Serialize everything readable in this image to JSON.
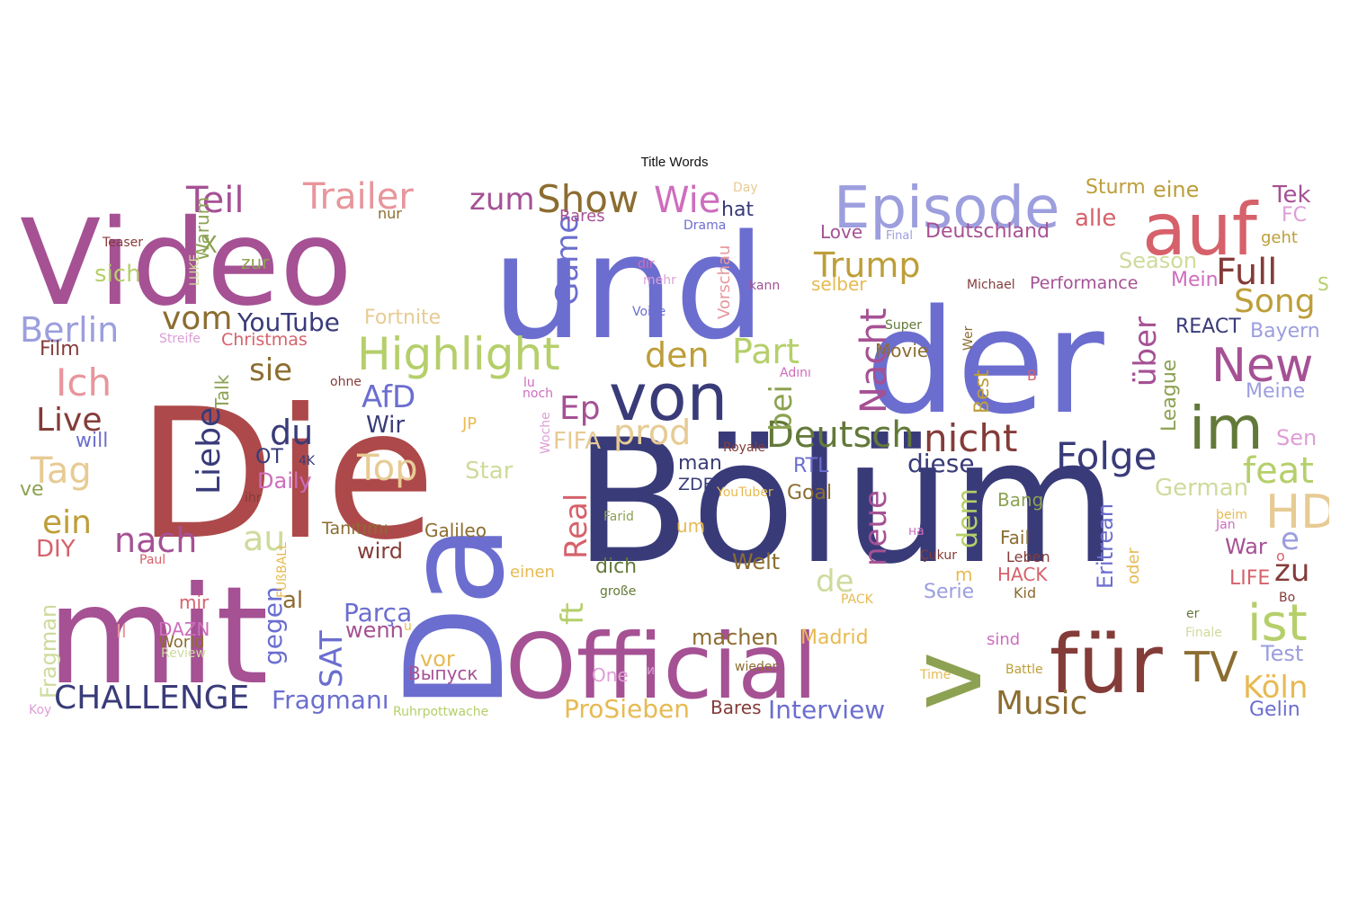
{
  "title": "Title Words",
  "palette": {
    "indigo": "#6b6ecf",
    "navy": "#393b79",
    "periwinkle": "#9c9ede",
    "red": "#ad494a",
    "salmon": "#d6616b",
    "pink": "#e7969c",
    "magenta": "#a55194",
    "orchid": "#ce6dbd",
    "lilac": "#de9ed6",
    "olive": "#637939",
    "moss": "#8ca252",
    "lime": "#b5cf6b",
    "pale": "#cedb9c",
    "brown": "#8c6d31",
    "gold": "#bd9e39",
    "amber": "#e7ba52",
    "sand": "#e7cb94",
    "maroon": "#843c39"
  },
  "words": [
    {
      "text": "Bölüm",
      "color": "navy"
    },
    {
      "text": "Die",
      "color": "red"
    },
    {
      "text": "und",
      "color": "indigo"
    },
    {
      "text": "der",
      "color": "indigo"
    },
    {
      "text": "Video",
      "color": "magenta"
    },
    {
      "text": "mit",
      "color": "magenta"
    },
    {
      "text": "Da",
      "color": "indigo"
    },
    {
      "text": "Official",
      "color": "magenta"
    },
    {
      "text": "auf",
      "color": "salmon"
    },
    {
      "text": "v",
      "color": "moss"
    },
    {
      "text": "für",
      "color": "maroon"
    },
    {
      "text": "Episode",
      "color": "periwinkle"
    },
    {
      "text": "von",
      "color": "navy"
    },
    {
      "text": "im",
      "color": "olive"
    },
    {
      "text": "Trailer",
      "color": "pink"
    },
    {
      "text": "Highlight",
      "color": "lime"
    },
    {
      "text": "New",
      "color": "magenta"
    },
    {
      "text": "HD",
      "color": "sand"
    },
    {
      "text": "ist",
      "color": "lime"
    },
    {
      "text": "Show",
      "color": "brown"
    },
    {
      "text": "Teil",
      "color": "magenta"
    },
    {
      "text": "zum",
      "color": "magenta"
    },
    {
      "text": "Wie",
      "color": "orchid"
    },
    {
      "text": "Trump",
      "color": "gold"
    },
    {
      "text": "Full",
      "color": "maroon"
    },
    {
      "text": "Song",
      "color": "gold"
    },
    {
      "text": "Part",
      "color": "lime"
    },
    {
      "text": "den",
      "color": "gold"
    },
    {
      "text": "Folge",
      "color": "navy"
    },
    {
      "text": "Deutsch",
      "color": "olive"
    },
    {
      "text": "nicht",
      "color": "maroon"
    },
    {
      "text": "Nacht",
      "color": "magenta"
    },
    {
      "text": "Game",
      "color": "indigo"
    },
    {
      "text": "Berlin",
      "color": "periwinkle"
    },
    {
      "text": "vom",
      "color": "brown"
    },
    {
      "text": "YouTube",
      "color": "navy"
    },
    {
      "text": "AfD",
      "color": "indigo"
    },
    {
      "text": "Ich",
      "color": "pink"
    },
    {
      "text": "Live",
      "color": "maroon"
    },
    {
      "text": "sie",
      "color": "brown"
    },
    {
      "text": "Tag",
      "color": "sand"
    },
    {
      "text": "du",
      "color": "navy"
    },
    {
      "text": "Liebe",
      "color": "navy"
    },
    {
      "text": "prod",
      "color": "sand"
    },
    {
      "text": "Ep",
      "color": "magenta"
    },
    {
      "text": "bei",
      "color": "moss"
    },
    {
      "text": "Top",
      "color": "sand"
    },
    {
      "text": "feat",
      "color": "lime"
    },
    {
      "text": "über",
      "color": "magenta"
    },
    {
      "text": "Real",
      "color": "salmon"
    },
    {
      "text": "ft",
      "color": "lime"
    },
    {
      "text": "ein",
      "color": "gold"
    },
    {
      "text": "nach",
      "color": "magenta"
    },
    {
      "text": "au",
      "color": "pale"
    },
    {
      "text": "neue",
      "color": "magenta"
    },
    {
      "text": "dem",
      "color": "lime"
    },
    {
      "text": "diese",
      "color": "navy"
    },
    {
      "text": "Music",
      "color": "brown"
    },
    {
      "text": "Köln",
      "color": "amber"
    },
    {
      "text": "TV",
      "color": "brown"
    },
    {
      "text": "CHALLENGE",
      "color": "navy"
    },
    {
      "text": "SAT",
      "color": "indigo"
    },
    {
      "text": "gegen",
      "color": "indigo"
    },
    {
      "text": "Fragmanı",
      "color": "indigo"
    },
    {
      "text": "Parça",
      "color": "indigo"
    },
    {
      "text": "ProSieben",
      "color": "amber"
    },
    {
      "text": "Interview",
      "color": "indigo"
    },
    {
      "text": "machen",
      "color": "brown"
    },
    {
      "text": "Madrid",
      "color": "amber"
    },
    {
      "text": "German",
      "color": "pale"
    },
    {
      "text": "Eritrean",
      "color": "indigo"
    },
    {
      "text": "Sturm",
      "color": "gold"
    },
    {
      "text": "eine",
      "color": "gold"
    },
    {
      "text": "Tek",
      "color": "magenta"
    },
    {
      "text": "alle",
      "color": "salmon"
    },
    {
      "text": "Deutschland",
      "color": "magenta"
    },
    {
      "text": "Season",
      "color": "pale"
    },
    {
      "text": "Mein",
      "color": "orchid"
    },
    {
      "text": "Performance",
      "color": "magenta"
    },
    {
      "text": "REACT",
      "color": "navy"
    },
    {
      "text": "Bayern",
      "color": "periwinkle"
    },
    {
      "text": "Meine",
      "color": "periwinkle"
    },
    {
      "text": "Sen",
      "color": "lilac"
    },
    {
      "text": "League",
      "color": "moss"
    },
    {
      "text": "Best",
      "color": "gold"
    },
    {
      "text": "Movie",
      "color": "brown"
    },
    {
      "text": "Love",
      "color": "magenta"
    },
    {
      "text": "selber",
      "color": "amber"
    },
    {
      "text": "Fortnite",
      "color": "sand"
    },
    {
      "text": "Christmas",
      "color": "salmon"
    },
    {
      "text": "Warum",
      "color": "moss"
    },
    {
      "text": "sich",
      "color": "lime"
    },
    {
      "text": "zur",
      "color": "moss"
    },
    {
      "text": "Film",
      "color": "maroon"
    },
    {
      "text": "Wir",
      "color": "navy"
    },
    {
      "text": "will",
      "color": "indigo"
    },
    {
      "text": "Talk",
      "color": "moss"
    },
    {
      "text": "Daily",
      "color": "orchid"
    },
    {
      "text": "FIFA",
      "color": "sand"
    },
    {
      "text": "Star",
      "color": "pale"
    },
    {
      "text": "RTL",
      "color": "indigo"
    },
    {
      "text": "man",
      "color": "navy"
    },
    {
      "text": "ZDF",
      "color": "navy"
    },
    {
      "text": "Goal",
      "color": "brown"
    },
    {
      "text": "Bang",
      "color": "moss"
    },
    {
      "text": "Fail",
      "color": "brown"
    },
    {
      "text": "Leben",
      "color": "maroon"
    },
    {
      "text": "HACK",
      "color": "salmon"
    },
    {
      "text": "Kid",
      "color": "brown"
    },
    {
      "text": "Serie",
      "color": "periwinkle"
    },
    {
      "text": "LIFE",
      "color": "salmon"
    },
    {
      "text": "War",
      "color": "magenta"
    },
    {
      "text": "zu",
      "color": "maroon"
    },
    {
      "text": "Test",
      "color": "periwinkle"
    },
    {
      "text": "Gelin",
      "color": "indigo"
    },
    {
      "text": "Welt",
      "color": "brown"
    },
    {
      "text": "dich",
      "color": "olive"
    },
    {
      "text": "de",
      "color": "pale"
    },
    {
      "text": "wird",
      "color": "maroon"
    },
    {
      "text": "Galileo",
      "color": "brown"
    },
    {
      "text": "Tanıtımı",
      "color": "brown"
    },
    {
      "text": "DIY",
      "color": "salmon"
    },
    {
      "text": "al",
      "color": "brown"
    },
    {
      "text": "wenn",
      "color": "magenta"
    },
    {
      "text": "DAZN",
      "color": "orchid"
    },
    {
      "text": "World",
      "color": "brown"
    },
    {
      "text": "Fragman",
      "color": "pale"
    },
    {
      "text": "Выпуск",
      "color": "magenta"
    },
    {
      "text": "vor",
      "color": "amber"
    },
    {
      "text": "One",
      "color": "lilac"
    },
    {
      "text": "Bares",
      "color": "maroon"
    },
    {
      "text": "Rares",
      "color": "magenta"
    },
    {
      "text": "hat",
      "color": "navy"
    },
    {
      "text": "Drama",
      "color": "indigo"
    },
    {
      "text": "Day",
      "color": "sand"
    },
    {
      "text": "nur",
      "color": "brown"
    },
    {
      "text": "X",
      "color": "moss"
    },
    {
      "text": "Teaser",
      "color": "maroon"
    },
    {
      "text": "LUKE",
      "color": "pale"
    },
    {
      "text": "Final",
      "color": "periwinkle"
    },
    {
      "text": "geht",
      "color": "gold"
    },
    {
      "text": "FC",
      "color": "lilac"
    },
    {
      "text": "S",
      "color": "lime"
    },
    {
      "text": "Michael",
      "color": "maroon"
    },
    {
      "text": "kann",
      "color": "magenta"
    },
    {
      "text": "dir",
      "color": "orchid"
    },
    {
      "text": "mehr",
      "color": "lilac"
    },
    {
      "text": "Voice",
      "color": "indigo"
    },
    {
      "text": "Vorschau",
      "color": "pink"
    },
    {
      "text": "Super",
      "color": "olive"
    },
    {
      "text": "Wer",
      "color": "brown"
    },
    {
      "text": "Adını",
      "color": "orchid"
    },
    {
      "text": "В",
      "color": "salmon"
    },
    {
      "text": "lu",
      "color": "orchid"
    },
    {
      "text": "noch",
      "color": "orchid"
    },
    {
      "text": "ohne",
      "color": "maroon"
    },
    {
      "text": "Streife",
      "color": "lilac"
    },
    {
      "text": "4K",
      "color": "navy"
    },
    {
      "text": "OT",
      "color": "navy"
    },
    {
      "text": "JP",
      "color": "amber"
    },
    {
      "text": "Woche",
      "color": "lilac"
    },
    {
      "text": "Royale",
      "color": "maroon"
    },
    {
      "text": "YouTuber",
      "color": "amber"
    },
    {
      "text": "Farid",
      "color": "moss"
    },
    {
      "text": "um",
      "color": "amber"
    },
    {
      "text": "einen",
      "color": "amber"
    },
    {
      "text": "große",
      "color": "olive"
    },
    {
      "text": "PACK",
      "color": "amber"
    },
    {
      "text": "Çukur",
      "color": "maroon"
    },
    {
      "text": "на",
      "color": "orchid"
    },
    {
      "text": "m",
      "color": "amber"
    },
    {
      "text": "oder",
      "color": "amber"
    },
    {
      "text": "beim",
      "color": "amber"
    },
    {
      "text": "Jan",
      "color": "orchid"
    },
    {
      "text": "e",
      "color": "periwinkle"
    },
    {
      "text": "o",
      "color": "salmon"
    },
    {
      "text": "er",
      "color": "olive"
    },
    {
      "text": "Finale",
      "color": "pale"
    },
    {
      "text": "Bo",
      "color": "maroon"
    },
    {
      "text": "Battle",
      "color": "gold"
    },
    {
      "text": "Time",
      "color": "amber"
    },
    {
      "text": "wieder",
      "color": "brown"
    },
    {
      "text": "и",
      "color": "lilac"
    },
    {
      "text": "Ruhrpottwache",
      "color": "lime"
    },
    {
      "text": "Koy",
      "color": "lilac"
    },
    {
      "text": "Review",
      "color": "pale"
    },
    {
      "text": "II",
      "color": "pink"
    },
    {
      "text": "mir",
      "color": "salmon"
    },
    {
      "text": "u",
      "color": "amber"
    },
    {
      "text": "FUßBALL",
      "color": "amber"
    },
    {
      "text": "Paul",
      "color": "salmon"
    },
    {
      "text": "ve",
      "color": "moss"
    },
    {
      "text": "ihr",
      "color": "maroon"
    },
    {
      "text": "sind",
      "color": "orchid"
    }
  ]
}
